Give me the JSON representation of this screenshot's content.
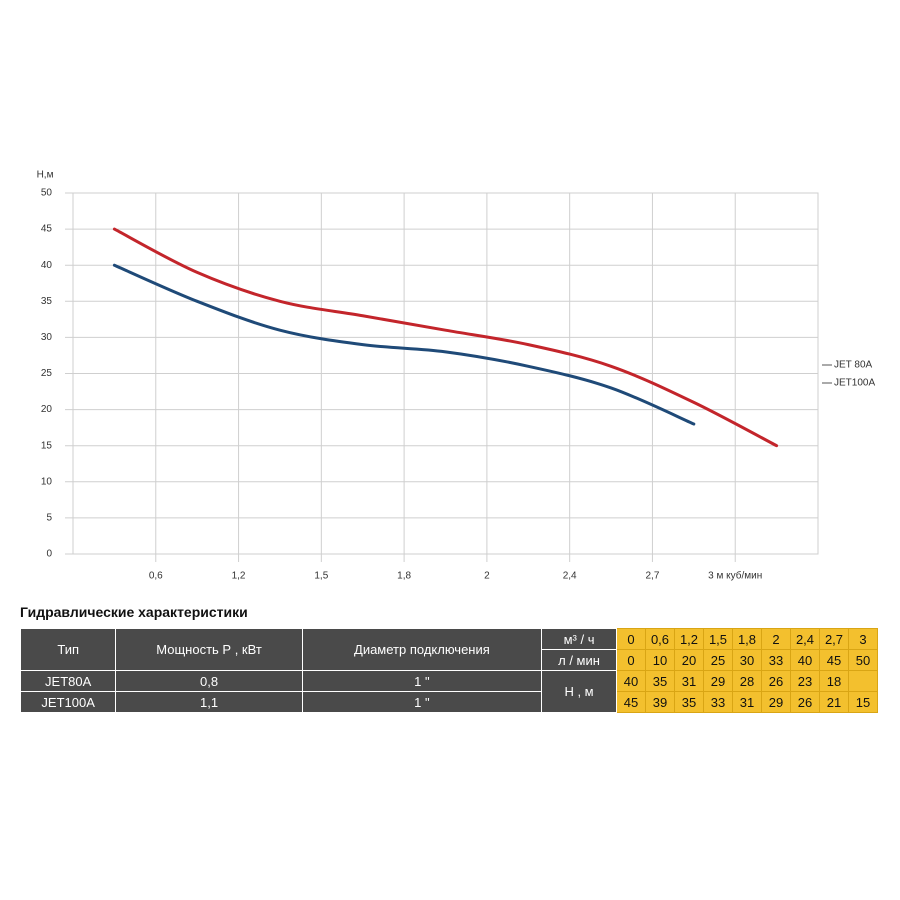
{
  "chart_data": {
    "type": "line",
    "y_label": "Н,м",
    "xlim": [
      0,
      9
    ],
    "xticks": [
      {
        "value": 1,
        "label": "0,6"
      },
      {
        "value": 2,
        "label": "1,2"
      },
      {
        "value": 3,
        "label": "1,5"
      },
      {
        "value": 4,
        "label": "1,8"
      },
      {
        "value": 5,
        "label": "2"
      },
      {
        "value": 6,
        "label": "2,4"
      },
      {
        "value": 7,
        "label": "2,7"
      },
      {
        "value": 8,
        "label": "3 м куб/мин"
      }
    ],
    "ylim": [
      0,
      50
    ],
    "yticks": [
      0,
      5,
      10,
      15,
      20,
      25,
      30,
      35,
      40,
      45,
      50
    ],
    "grid": true,
    "legend": "right",
    "series": [
      {
        "name": "JET 80A",
        "color": "#1f4a78",
        "x": [
          0.5,
          1.5,
          2.5,
          3.5,
          4.5,
          5.5,
          6.5,
          7.5
        ],
        "values": [
          40,
          35,
          31,
          29,
          28,
          26,
          23,
          18
        ]
      },
      {
        "name": "JET100A",
        "color": "#c3252b",
        "x": [
          0.5,
          1.5,
          2.5,
          3.5,
          4.5,
          5.5,
          6.5,
          7.5,
          8.5
        ],
        "values": [
          45,
          39,
          35,
          33,
          31,
          29,
          26,
          21,
          15
        ]
      }
    ]
  },
  "table": {
    "title": "Гидравлические характеристики",
    "columns": [
      "Тип",
      "Мощность Р , кВт",
      "Диаметр подключения"
    ],
    "flow_units": [
      "м³ / ч",
      "л / мин"
    ],
    "flow_m3h": [
      "0",
      "0,6",
      "1,2",
      "1,5",
      "1,8",
      "2",
      "2,4",
      "2,7",
      "3"
    ],
    "flow_lmin": [
      0,
      10,
      20,
      25,
      30,
      33,
      40,
      45,
      50
    ],
    "head_unit": "Н , м",
    "rows": [
      {
        "type": "JET80A",
        "power": "0,8",
        "diameter": "1 \"",
        "head": [
          40,
          35,
          31,
          29,
          28,
          26,
          23,
          18,
          null
        ]
      },
      {
        "type": "JET100A",
        "power": "1,1",
        "diameter": "1 \"",
        "head": [
          45,
          39,
          35,
          33,
          31,
          29,
          26,
          21,
          15
        ]
      }
    ]
  }
}
